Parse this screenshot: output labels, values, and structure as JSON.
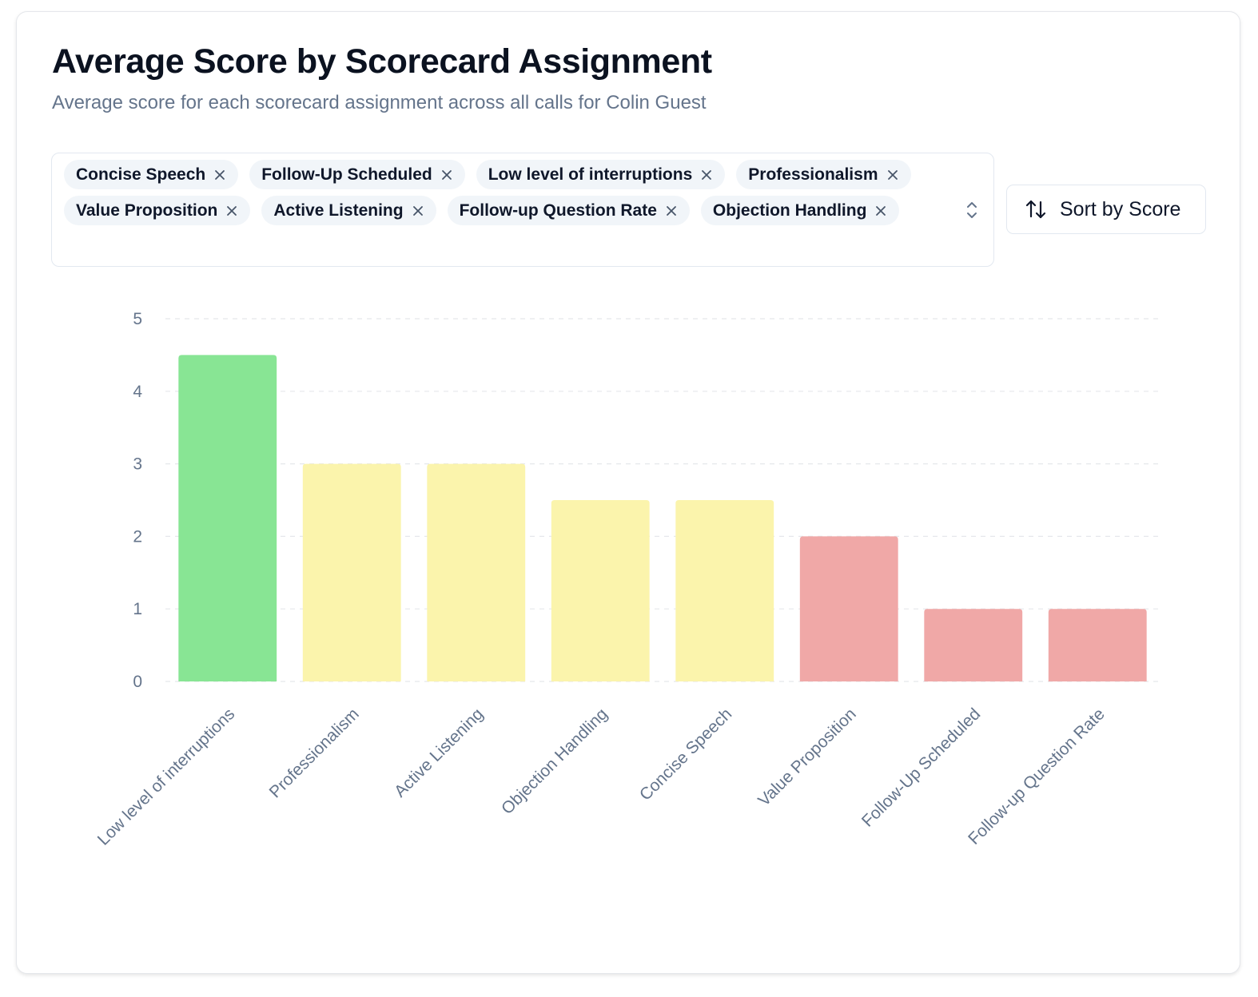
{
  "header": {
    "title": "Average Score by Scorecard Assignment",
    "subtitle": "Average score for each scorecard assignment across all calls for Colin Guest"
  },
  "filters": {
    "chips": [
      "Concise Speech",
      "Follow-Up Scheduled",
      "Low level of interruptions",
      "Professionalism",
      "Value Proposition",
      "Active Listening",
      "Follow-up Question Rate",
      "Objection Handling"
    ],
    "remove_icon": "close-icon",
    "expand_icon": "chevron-up-down-icon"
  },
  "sort_button": {
    "label": "Sort by Score",
    "icon": "sort-arrows-icon"
  },
  "colors": {
    "high": "#88e594",
    "mid": "#fbf4ac",
    "low": "#f0a8a7",
    "grid": "#e5e7eb",
    "axis_text": "#64748b"
  },
  "chart_data": {
    "type": "bar",
    "title": "",
    "xlabel": "",
    "ylabel": "",
    "ylim": [
      0,
      5
    ],
    "yticks": [
      0,
      1,
      2,
      3,
      4,
      5
    ],
    "grid": true,
    "categories": [
      "Low level of interruptions",
      "Professionalism",
      "Active Listening",
      "Objection Handling",
      "Concise Speech",
      "Value Proposition",
      "Follow-Up Scheduled",
      "Follow-up Question Rate"
    ],
    "values": [
      4.5,
      3,
      3,
      2.5,
      2.5,
      2,
      1,
      1
    ],
    "bar_color_levels": [
      "high",
      "mid",
      "mid",
      "mid",
      "mid",
      "low",
      "low",
      "low"
    ]
  }
}
